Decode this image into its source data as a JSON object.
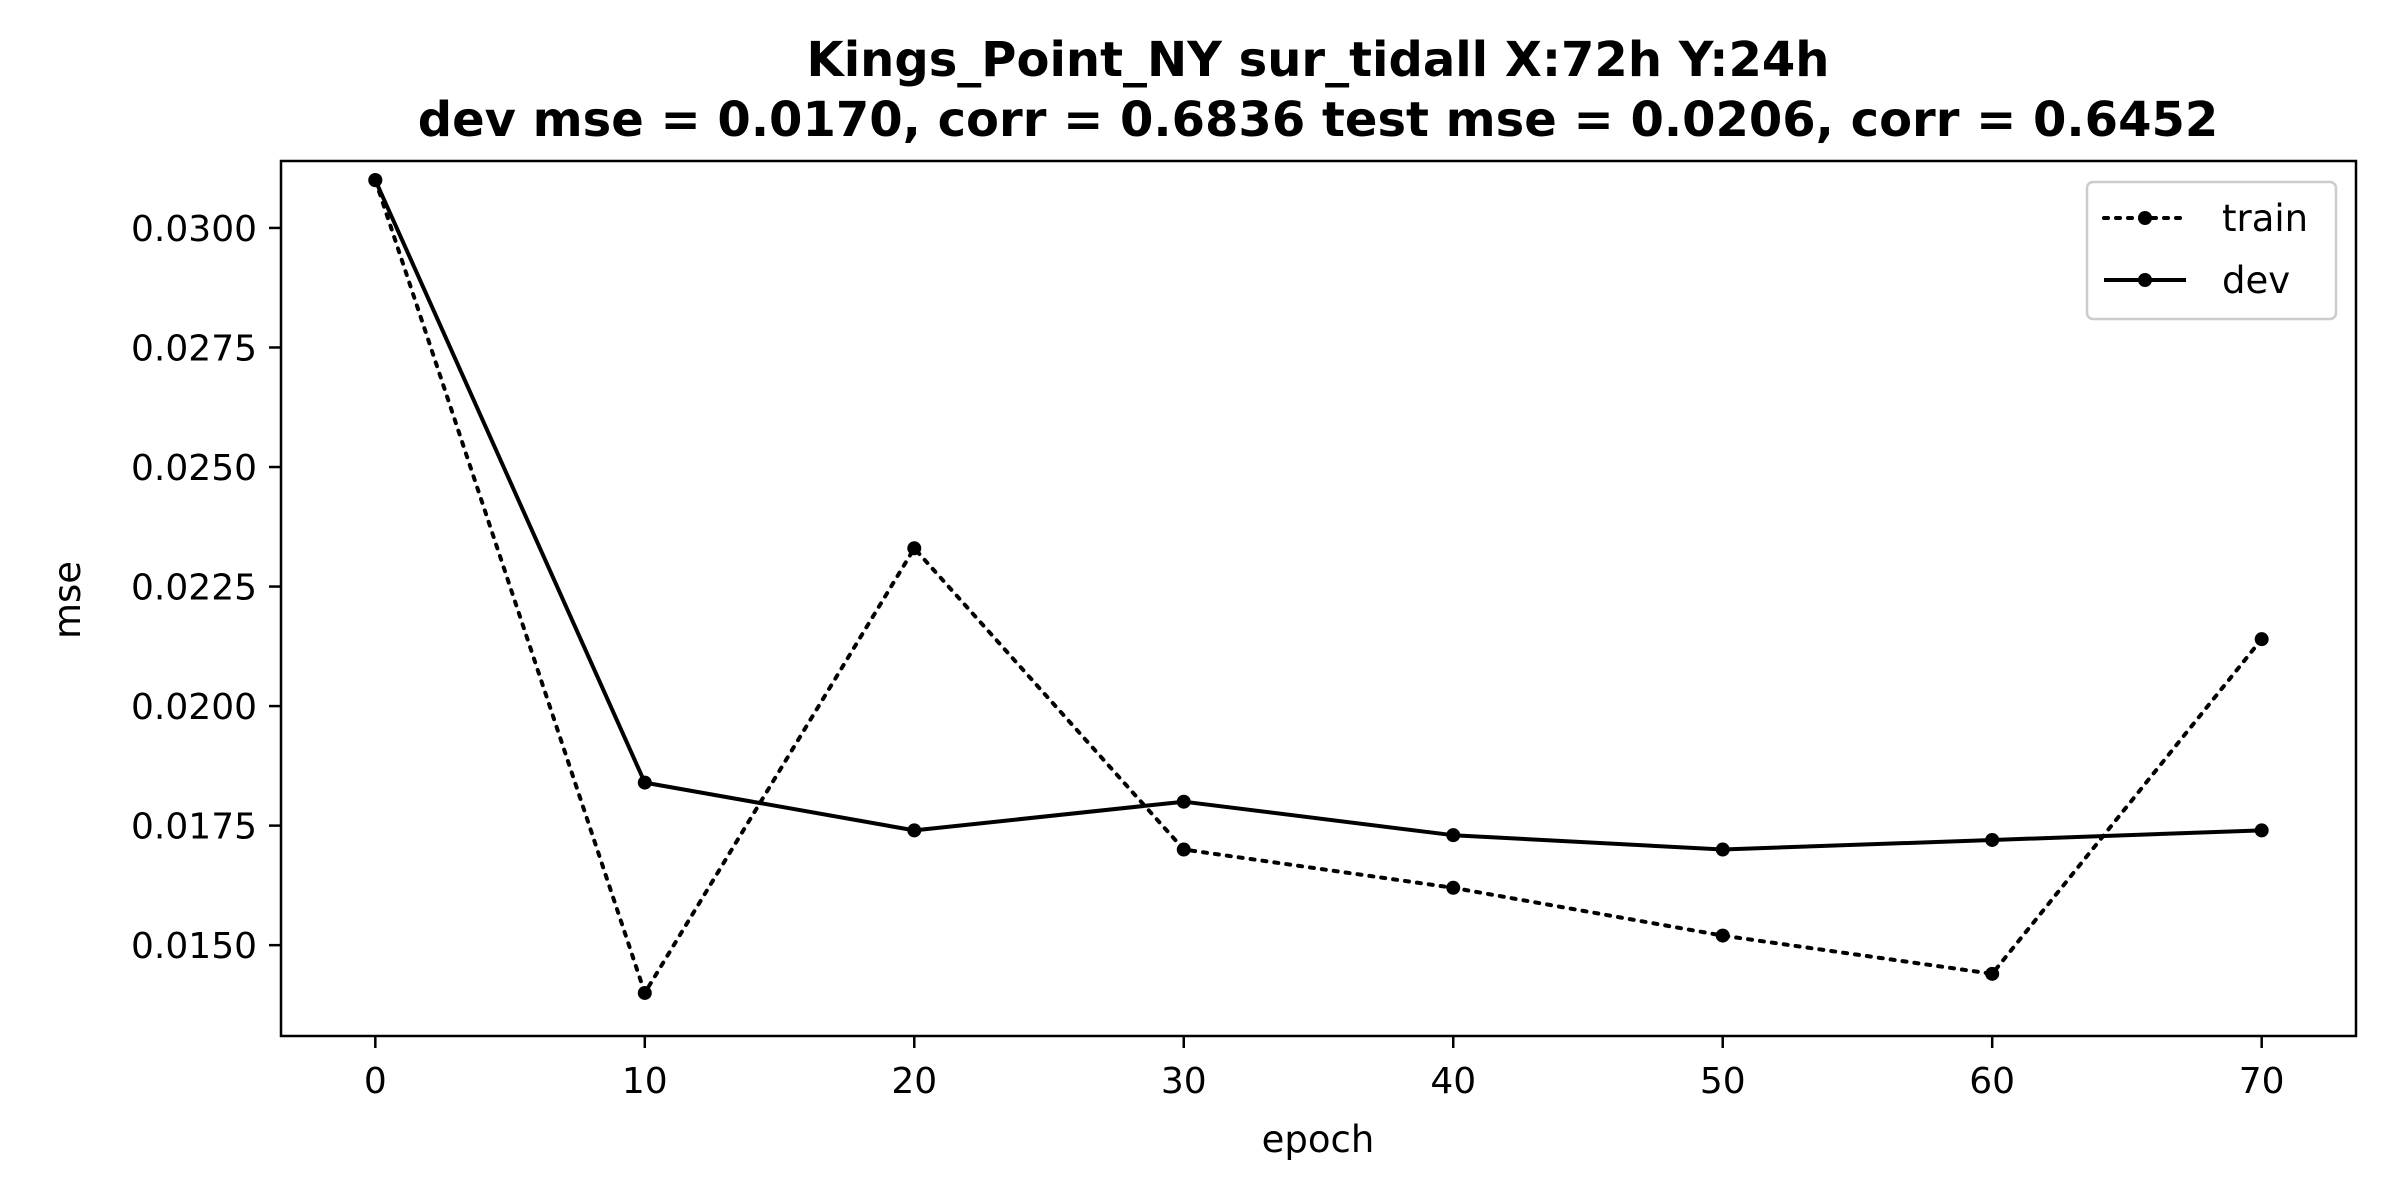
{
  "chart_data": {
    "type": "line",
    "title_lines": [
      "Kings_Point_NY   sur_tidall   X:72h   Y:24h",
      "dev mse = 0.0170, corr = 0.6836   test mse = 0.0206, corr = 0.6452"
    ],
    "xlabel": "epoch",
    "ylabel": "mse",
    "xlim": [
      -3.5,
      73.5
    ],
    "ylim": [
      0.0131,
      0.0314
    ],
    "x_ticks": [
      0,
      10,
      20,
      30,
      40,
      50,
      60,
      70
    ],
    "x_tick_labels": [
      "0",
      "10",
      "20",
      "30",
      "40",
      "50",
      "60",
      "70"
    ],
    "y_ticks": [
      0.015,
      0.0175,
      0.02,
      0.0225,
      0.025,
      0.0275,
      0.03
    ],
    "y_tick_labels": [
      "0.0150",
      "0.0175",
      "0.0200",
      "0.0225",
      "0.0250",
      "0.0275",
      "0.0300"
    ],
    "grid": false,
    "legend_position": "top-right",
    "series": [
      {
        "name": "train",
        "style": "dotted",
        "color": "#000000",
        "x": [
          0,
          10,
          20,
          30,
          40,
          50,
          60,
          70
        ],
        "y": [
          0.031,
          0.014,
          0.0233,
          0.017,
          0.0162,
          0.0152,
          0.0144,
          0.0214
        ]
      },
      {
        "name": "dev",
        "style": "solid",
        "color": "#000000",
        "x": [
          0,
          10,
          20,
          30,
          40,
          50,
          60,
          70
        ],
        "y": [
          0.031,
          0.0184,
          0.0174,
          0.018,
          0.0173,
          0.017,
          0.0172,
          0.0174
        ]
      }
    ]
  }
}
